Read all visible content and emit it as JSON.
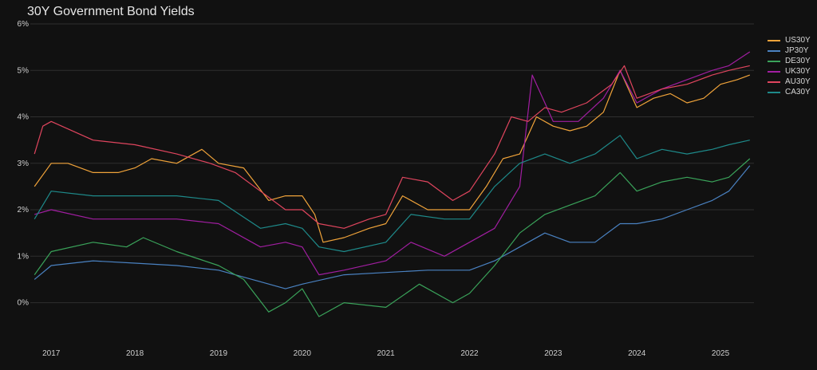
{
  "chart_data": {
    "type": "line",
    "title": "30Y Government Bond Yields",
    "xlabel": "",
    "ylabel": "",
    "ylim": [
      -0.9,
      6.0
    ],
    "xlim": [
      2016.75,
      2025.4
    ],
    "y_ticks": [
      "0%",
      "1%",
      "2%",
      "3%",
      "4%",
      "5%",
      "6%"
    ],
    "y_tick_values": [
      0,
      1,
      2,
      3,
      4,
      5,
      6
    ],
    "x_ticks": [
      "2017",
      "2018",
      "2019",
      "2020",
      "2021",
      "2022",
      "2023",
      "2024",
      "2025"
    ],
    "x_tick_values": [
      2017,
      2018,
      2019,
      2020,
      2021,
      2022,
      2023,
      2024,
      2025
    ],
    "grid": true,
    "legend_position": "top-right",
    "series": [
      {
        "name": "US30Y",
        "color": "#f0a33a",
        "x": [
          2016.8,
          2017.0,
          2017.2,
          2017.5,
          2017.8,
          2018.0,
          2018.2,
          2018.5,
          2018.8,
          2019.0,
          2019.3,
          2019.6,
          2019.8,
          2020.0,
          2020.15,
          2020.25,
          2020.5,
          2020.8,
          2021.0,
          2021.2,
          2021.5,
          2021.8,
          2022.0,
          2022.2,
          2022.4,
          2022.6,
          2022.8,
          2023.0,
          2023.2,
          2023.4,
          2023.6,
          2023.8,
          2024.0,
          2024.2,
          2024.4,
          2024.6,
          2024.8,
          2025.0,
          2025.2,
          2025.35
        ],
        "y": [
          2.5,
          3.0,
          3.0,
          2.8,
          2.8,
          2.9,
          3.1,
          3.0,
          3.3,
          3.0,
          2.9,
          2.2,
          2.3,
          2.3,
          1.9,
          1.3,
          1.4,
          1.6,
          1.7,
          2.3,
          2.0,
          2.0,
          2.0,
          2.5,
          3.1,
          3.2,
          4.0,
          3.8,
          3.7,
          3.8,
          4.1,
          5.0,
          4.2,
          4.4,
          4.5,
          4.3,
          4.4,
          4.7,
          4.8,
          4.9
        ]
      },
      {
        "name": "JP30Y",
        "color": "#4a82c2",
        "x": [
          2016.8,
          2017.0,
          2017.5,
          2018.0,
          2018.5,
          2019.0,
          2019.5,
          2019.8,
          2020.0,
          2020.5,
          2021.0,
          2021.5,
          2022.0,
          2022.3,
          2022.6,
          2022.9,
          2023.2,
          2023.5,
          2023.8,
          2024.0,
          2024.3,
          2024.6,
          2024.9,
          2025.1,
          2025.35
        ],
        "y": [
          0.5,
          0.8,
          0.9,
          0.85,
          0.8,
          0.7,
          0.45,
          0.3,
          0.4,
          0.6,
          0.65,
          0.7,
          0.7,
          0.9,
          1.2,
          1.5,
          1.3,
          1.3,
          1.7,
          1.7,
          1.8,
          2.0,
          2.2,
          2.4,
          2.95
        ]
      },
      {
        "name": "DE30Y",
        "color": "#3aa35a",
        "x": [
          2016.8,
          2017.0,
          2017.5,
          2017.9,
          2018.1,
          2018.5,
          2019.0,
          2019.3,
          2019.6,
          2019.8,
          2020.0,
          2020.2,
          2020.5,
          2021.0,
          2021.4,
          2021.8,
          2022.0,
          2022.3,
          2022.6,
          2022.9,
          2023.2,
          2023.5,
          2023.8,
          2024.0,
          2024.3,
          2024.6,
          2024.9,
          2025.1,
          2025.35
        ],
        "y": [
          0.6,
          1.1,
          1.3,
          1.2,
          1.4,
          1.1,
          0.8,
          0.5,
          -0.2,
          0.0,
          0.3,
          -0.3,
          0.0,
          -0.1,
          0.4,
          0.0,
          0.2,
          0.8,
          1.5,
          1.9,
          2.1,
          2.3,
          2.8,
          2.4,
          2.6,
          2.7,
          2.6,
          2.7,
          3.1
        ]
      },
      {
        "name": "UK30Y",
        "color": "#a11ea1",
        "x": [
          2016.8,
          2017.0,
          2017.5,
          2018.0,
          2018.5,
          2019.0,
          2019.5,
          2019.8,
          2020.0,
          2020.2,
          2020.5,
          2021.0,
          2021.3,
          2021.7,
          2022.0,
          2022.3,
          2022.6,
          2022.75,
          2022.9,
          2023.0,
          2023.3,
          2023.6,
          2023.8,
          2024.0,
          2024.3,
          2024.6,
          2024.9,
          2025.1,
          2025.35
        ],
        "y": [
          1.9,
          2.0,
          1.8,
          1.8,
          1.8,
          1.7,
          1.2,
          1.3,
          1.2,
          0.6,
          0.7,
          0.9,
          1.3,
          1.0,
          1.3,
          1.6,
          2.5,
          4.9,
          4.3,
          3.9,
          3.9,
          4.4,
          5.0,
          4.3,
          4.6,
          4.8,
          5.0,
          5.1,
          5.4
        ]
      },
      {
        "name": "AU30Y",
        "color": "#e0455e",
        "x": [
          2016.8,
          2016.9,
          2017.0,
          2017.5,
          2018.0,
          2018.5,
          2018.9,
          2019.2,
          2019.5,
          2019.8,
          2020.0,
          2020.2,
          2020.5,
          2020.8,
          2021.0,
          2021.2,
          2021.5,
          2021.8,
          2022.0,
          2022.3,
          2022.5,
          2022.7,
          2022.9,
          2023.1,
          2023.4,
          2023.7,
          2023.85,
          2024.0,
          2024.3,
          2024.6,
          2024.9,
          2025.1,
          2025.35
        ],
        "y": [
          3.2,
          3.8,
          3.9,
          3.5,
          3.4,
          3.2,
          3.0,
          2.8,
          2.4,
          2.0,
          2.0,
          1.7,
          1.6,
          1.8,
          1.9,
          2.7,
          2.6,
          2.2,
          2.4,
          3.2,
          4.0,
          3.9,
          4.2,
          4.1,
          4.3,
          4.7,
          5.1,
          4.4,
          4.6,
          4.7,
          4.9,
          5.0,
          5.1
        ]
      },
      {
        "name": "CA30Y",
        "color": "#1e8a8a",
        "x": [
          2016.8,
          2017.0,
          2017.5,
          2018.0,
          2018.5,
          2019.0,
          2019.5,
          2019.8,
          2020.0,
          2020.2,
          2020.5,
          2021.0,
          2021.3,
          2021.7,
          2022.0,
          2022.3,
          2022.6,
          2022.9,
          2023.2,
          2023.5,
          2023.8,
          2024.0,
          2024.3,
          2024.6,
          2024.9,
          2025.1,
          2025.35
        ],
        "y": [
          1.8,
          2.4,
          2.3,
          2.3,
          2.3,
          2.2,
          1.6,
          1.7,
          1.6,
          1.2,
          1.1,
          1.3,
          1.9,
          1.8,
          1.8,
          2.5,
          3.0,
          3.2,
          3.0,
          3.2,
          3.6,
          3.1,
          3.3,
          3.2,
          3.3,
          3.4,
          3.5
        ]
      }
    ]
  }
}
